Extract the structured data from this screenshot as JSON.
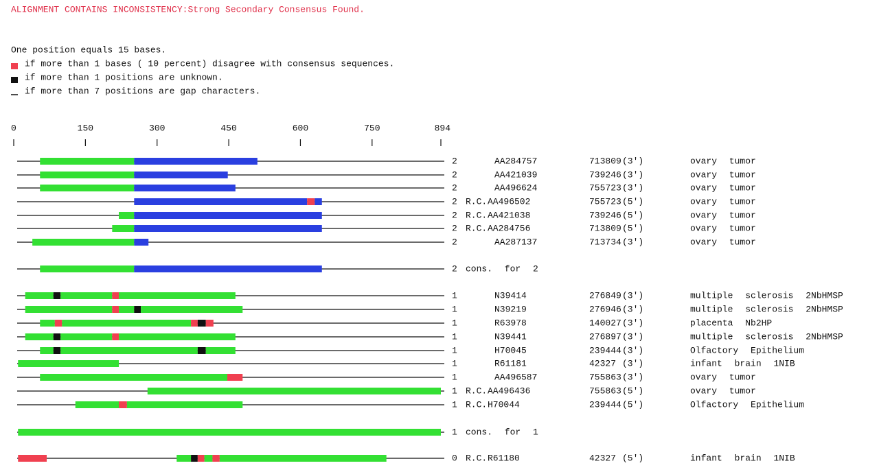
{
  "header": "ALIGNMENT CONTAINS INCONSISTENCY:Strong Secondary Consensus Found.",
  "legend": {
    "scale": "One position equals 15 bases.",
    "items": [
      {
        "kind": "red",
        "text": "if more than 1 bases ( 10 percent) disagree with consensus sequences."
      },
      {
        "kind": "black",
        "text": "if more than 1 positions are unknown."
      },
      {
        "kind": "gap",
        "text": "if more than 7 positions are gap characters."
      }
    ]
  },
  "colors": {
    "green": "#33e033",
    "blue": "#2a3fe0",
    "red": "#f04050",
    "black": "#111111",
    "gap": "#111111"
  },
  "axis": {
    "lim": [
      0,
      894
    ],
    "ticks": [
      0,
      150,
      300,
      450,
      600,
      750,
      894
    ]
  },
  "rows": [
    {
      "count": 2,
      "id": "AA284757",
      "clone": 713809,
      "dir": "(3')",
      "tissue": "ovary tumor",
      "segments": [
        {
          "start": 55,
          "end": 252,
          "kind": "green"
        },
        {
          "start": 252,
          "end": 510,
          "kind": "blue"
        }
      ]
    },
    {
      "count": 2,
      "id": "AA421039",
      "clone": 739246,
      "dir": "(3')",
      "tissue": "ovary tumor",
      "segments": [
        {
          "start": 55,
          "end": 252,
          "kind": "green"
        },
        {
          "start": 252,
          "end": 448,
          "kind": "blue"
        }
      ]
    },
    {
      "count": 2,
      "id": "AA496624",
      "clone": 755723,
      "dir": "(3')",
      "tissue": "ovary tumor",
      "segments": [
        {
          "start": 55,
          "end": 252,
          "kind": "green"
        },
        {
          "start": 252,
          "end": 464,
          "kind": "blue"
        }
      ]
    },
    {
      "count": 2,
      "prefix": "R.C.",
      "id": "AA496502",
      "clone": 755723,
      "dir": "(5')",
      "tissue": "ovary tumor",
      "segments": [
        {
          "start": 252,
          "end": 614,
          "kind": "blue"
        },
        {
          "start": 614,
          "end": 630,
          "kind": "red"
        },
        {
          "start": 630,
          "end": 645,
          "kind": "blue"
        }
      ]
    },
    {
      "count": 2,
      "prefix": "R.C.",
      "id": "AA421038",
      "clone": 739246,
      "dir": "(5')",
      "tissue": "ovary tumor",
      "segments": [
        {
          "start": 220,
          "end": 252,
          "kind": "green"
        },
        {
          "start": 252,
          "end": 645,
          "kind": "blue"
        }
      ]
    },
    {
      "count": 2,
      "prefix": "R.C.",
      "id": "AA284756",
      "clone": 713809,
      "dir": "(5')",
      "tissue": "ovary tumor",
      "segments": [
        {
          "start": 206,
          "end": 252,
          "kind": "green"
        },
        {
          "start": 252,
          "end": 645,
          "kind": "blue"
        }
      ]
    },
    {
      "count": 2,
      "id": "AA287137",
      "clone": 713734,
      "dir": "(3')",
      "tissue": "ovary tumor",
      "segments": [
        {
          "start": 39,
          "end": 252,
          "kind": "green"
        },
        {
          "start": 252,
          "end": 282,
          "kind": "blue"
        }
      ]
    },
    {
      "count": 2,
      "id": "cons. for 2",
      "segments": [
        {
          "start": 55,
          "end": 252,
          "kind": "green"
        },
        {
          "start": 252,
          "end": 645,
          "kind": "blue"
        }
      ]
    },
    {
      "count": 1,
      "id": "N39414",
      "clone": 276849,
      "dir": "(3')",
      "tissue": "multiple sclerosis 2NbHMSP",
      "segments": [
        {
          "start": 24,
          "end": 83,
          "kind": "green"
        },
        {
          "start": 83,
          "end": 98,
          "kind": "black"
        },
        {
          "start": 98,
          "end": 206,
          "kind": "green"
        },
        {
          "start": 206,
          "end": 220,
          "kind": "red"
        },
        {
          "start": 220,
          "end": 464,
          "kind": "green"
        }
      ]
    },
    {
      "count": 1,
      "id": "N39219",
      "clone": 276946,
      "dir": "(3')",
      "tissue": "multiple sclerosis 2NbHMSP",
      "segments": [
        {
          "start": 24,
          "end": 206,
          "kind": "green"
        },
        {
          "start": 206,
          "end": 220,
          "kind": "red"
        },
        {
          "start": 220,
          "end": 252,
          "kind": "green"
        },
        {
          "start": 252,
          "end": 266,
          "kind": "black"
        },
        {
          "start": 266,
          "end": 479,
          "kind": "green"
        }
      ]
    },
    {
      "count": 1,
      "id": "R63978",
      "clone": 140027,
      "dir": "(3')",
      "tissue": "placenta Nb2HP",
      "segments": [
        {
          "start": 55,
          "end": 86,
          "kind": "green"
        },
        {
          "start": 86,
          "end": 101,
          "kind": "red"
        },
        {
          "start": 101,
          "end": 371,
          "kind": "green"
        },
        {
          "start": 371,
          "end": 385,
          "kind": "red"
        },
        {
          "start": 385,
          "end": 402,
          "kind": "black"
        },
        {
          "start": 402,
          "end": 418,
          "kind": "red"
        }
      ]
    },
    {
      "count": 1,
      "id": "N39441",
      "clone": 276897,
      "dir": "(3')",
      "tissue": "multiple sclerosis 2NbHMSP",
      "segments": [
        {
          "start": 24,
          "end": 83,
          "kind": "green"
        },
        {
          "start": 83,
          "end": 98,
          "kind": "black"
        },
        {
          "start": 98,
          "end": 206,
          "kind": "green"
        },
        {
          "start": 206,
          "end": 220,
          "kind": "red"
        },
        {
          "start": 220,
          "end": 464,
          "kind": "green"
        }
      ]
    },
    {
      "count": 1,
      "id": "H70045",
      "clone": 239444,
      "dir": "(3')",
      "tissue": "Olfactory Epithelium",
      "segments": [
        {
          "start": 55,
          "end": 83,
          "kind": "green"
        },
        {
          "start": 83,
          "end": 98,
          "kind": "black"
        },
        {
          "start": 98,
          "end": 385,
          "kind": "green"
        },
        {
          "start": 385,
          "end": 402,
          "kind": "black"
        },
        {
          "start": 402,
          "end": 464,
          "kind": "green"
        }
      ]
    },
    {
      "count": 1,
      "id": "R61181",
      "clone": 42327,
      "dir": "(3')",
      "tissue": "infant brain 1NIB",
      "segments": [
        {
          "start": 9,
          "end": 220,
          "kind": "green"
        }
      ]
    },
    {
      "count": 1,
      "id": "AA496587",
      "clone": 755863,
      "dir": "(3')",
      "tissue": "ovary tumor",
      "segments": [
        {
          "start": 55,
          "end": 447,
          "kind": "green"
        },
        {
          "start": 447,
          "end": 479,
          "kind": "red"
        }
      ]
    },
    {
      "count": 1,
      "prefix": "R.C.",
      "id": "AA496436",
      "clone": 755863,
      "dir": "(5')",
      "tissue": "ovary tumor",
      "segments": [
        {
          "start": 280,
          "end": 894,
          "kind": "green"
        }
      ]
    },
    {
      "count": 1,
      "prefix": "R.C.",
      "id": "H70044",
      "clone": 239444,
      "dir": "(5')",
      "tissue": "Olfactory Epithelium",
      "segments": [
        {
          "start": 129,
          "end": 220,
          "kind": "green"
        },
        {
          "start": 220,
          "end": 237,
          "kind": "red"
        },
        {
          "start": 237,
          "end": 479,
          "kind": "green"
        }
      ]
    },
    {
      "count": 1,
      "id": "cons. for 1",
      "segments": [
        {
          "start": 9,
          "end": 894,
          "kind": "green"
        }
      ]
    },
    {
      "count": 0,
      "prefix": "R.C.",
      "id": "R61180",
      "clone": 42327,
      "dir": "(5')",
      "tissue": "infant brain 1NIB",
      "segments": [
        {
          "start": 9,
          "end": 69,
          "kind": "red"
        },
        {
          "start": 341,
          "end": 371,
          "kind": "green"
        },
        {
          "start": 371,
          "end": 385,
          "kind": "black"
        },
        {
          "start": 385,
          "end": 399,
          "kind": "red"
        },
        {
          "start": 399,
          "end": 416,
          "kind": "green"
        },
        {
          "start": 416,
          "end": 431,
          "kind": "red"
        },
        {
          "start": 431,
          "end": 780,
          "kind": "green"
        }
      ]
    }
  ]
}
